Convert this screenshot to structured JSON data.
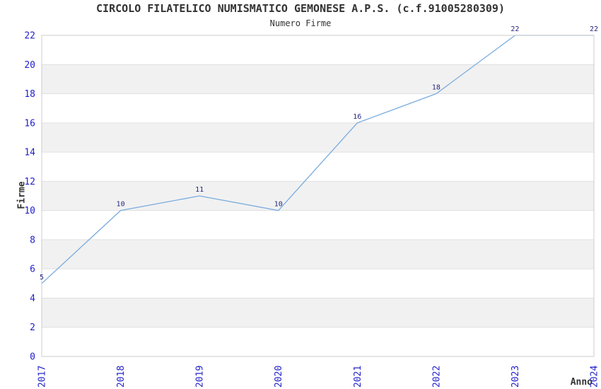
{
  "chart_data": {
    "type": "line",
    "title": "CIRCOLO FILATELICO NUMISMATICO GEMONESE A.P.S. (c.f.91005280309)",
    "subtitle": "Numero Firme",
    "xlabel": "Anno",
    "ylabel": "Firme",
    "categories": [
      "2017",
      "2018",
      "2019",
      "2020",
      "2021",
      "2022",
      "2023",
      "2024"
    ],
    "values": [
      5,
      10,
      11,
      10,
      16,
      18,
      22,
      22
    ],
    "ylim": [
      0,
      22
    ],
    "ytick_step": 2,
    "ytick_labels": [
      "0",
      "2",
      "4",
      "6",
      "8",
      "10",
      "12",
      "14",
      "16",
      "18",
      "20",
      "22"
    ],
    "value_labels": [
      "5",
      "10",
      "11",
      "10",
      "16",
      "18",
      "22",
      "22"
    ],
    "legend": "none",
    "grid": "alternating-horizontal-bands",
    "colors": {
      "line": "#7aabdf",
      "tick_label": "#2222cc",
      "value_label": "#26267e",
      "band": "#f1f1f1",
      "gridline": "#e0e0e0",
      "border": "#cccccc",
      "text": "#333333"
    }
  }
}
